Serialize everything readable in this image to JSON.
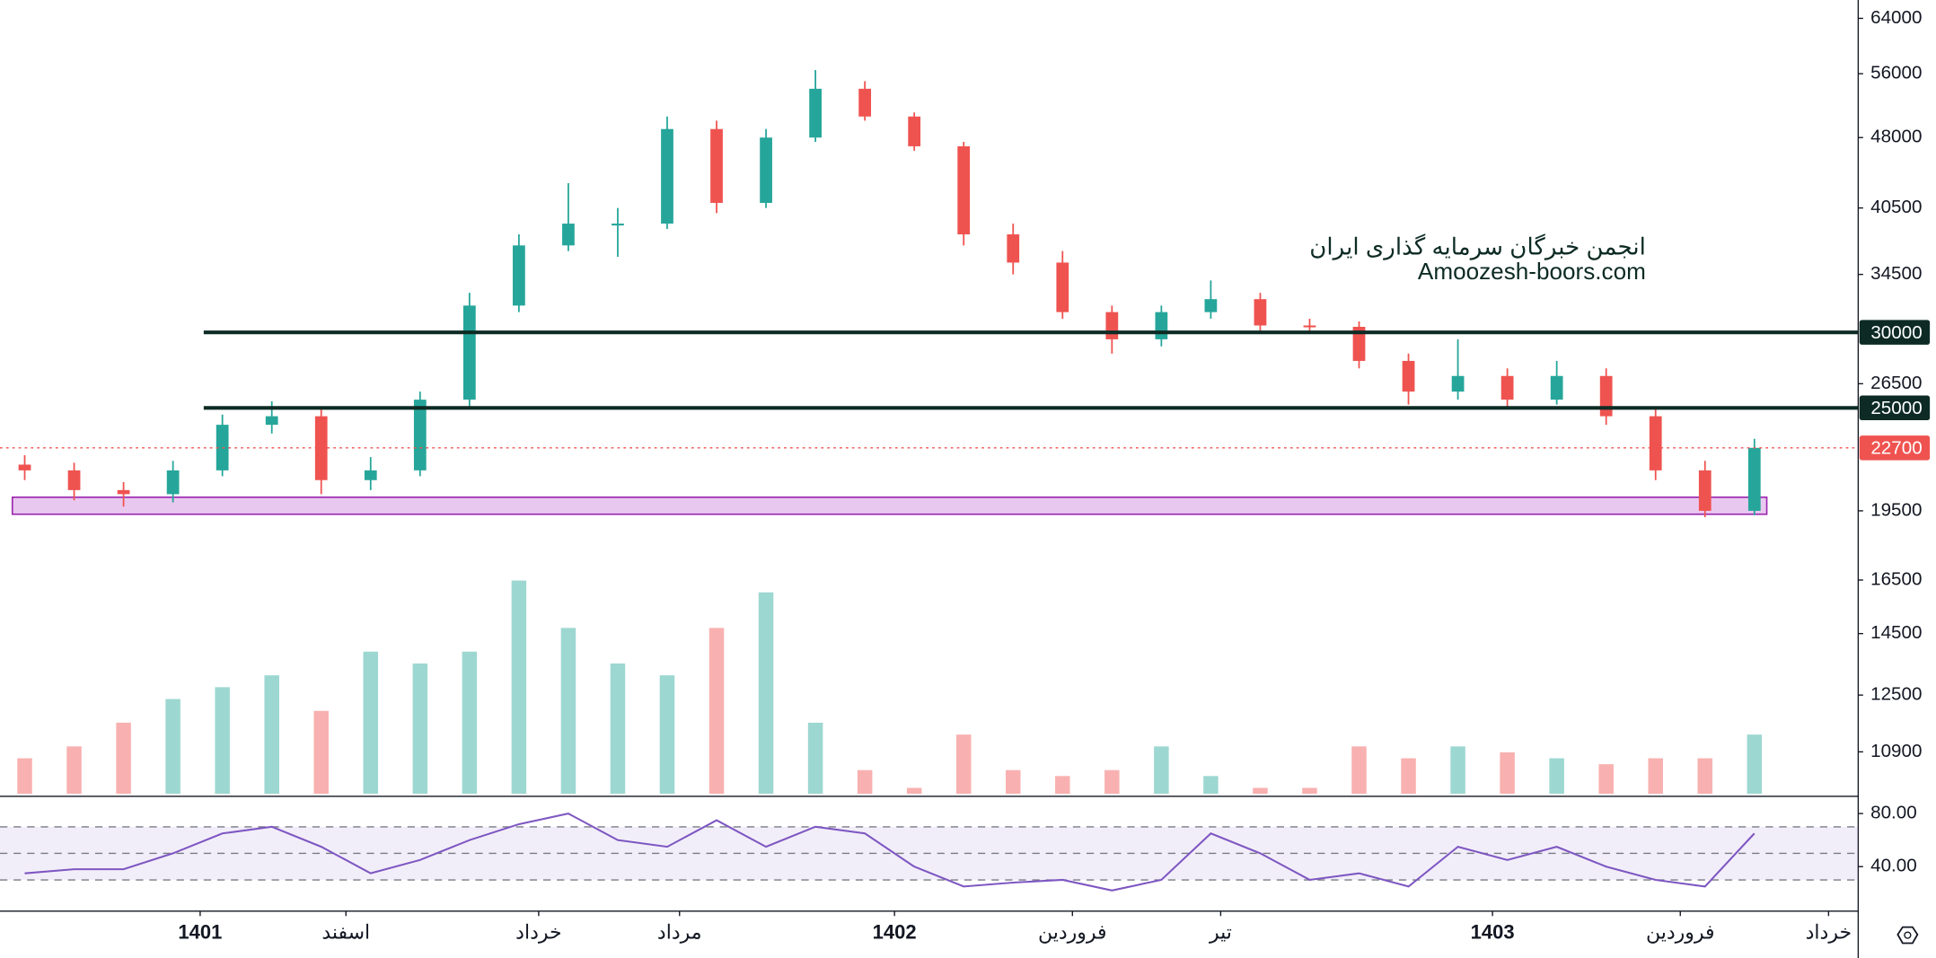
{
  "watermark": {
    "line1": "انجمن خبرگان سرمایه گذاری ایران",
    "line2": "Amoozesh-boors.com"
  },
  "chart_data": [
    {
      "type": "candlestick",
      "log_scale": true,
      "open": [
        21800,
        21500,
        20500,
        20300,
        21500,
        24000,
        24500,
        21000,
        21500,
        25500,
        32000,
        37000,
        39000,
        39000,
        49000,
        41000,
        48000,
        54000,
        50500,
        47000,
        38000,
        35500,
        31500,
        29500,
        31500,
        32500,
        30500,
        30400,
        28000,
        26000,
        27000,
        25500,
        27000,
        24500,
        21500,
        19500
      ],
      "high": [
        22300,
        21900,
        20900,
        22000,
        24600,
        25400,
        25000,
        22200,
        26000,
        33000,
        38000,
        43000,
        40500,
        50500,
        50000,
        49000,
        56500,
        55000,
        51000,
        47500,
        39000,
        36500,
        32000,
        32000,
        34000,
        33000,
        31000,
        30800,
        28500,
        29500,
        27500,
        28000,
        27500,
        25000,
        22000,
        23200
      ],
      "low": [
        21000,
        20000,
        19700,
        19900,
        21200,
        23500,
        20300,
        20500,
        21200,
        25000,
        31500,
        36500,
        36000,
        38500,
        40000,
        40500,
        47500,
        50000,
        46500,
        37000,
        34500,
        31000,
        28500,
        29000,
        31000,
        30000,
        30000,
        27500,
        25200,
        25500,
        25000,
        25200,
        24000,
        21000,
        19200,
        19300
      ],
      "close": [
        21500,
        20500,
        20300,
        21500,
        24000,
        24500,
        21000,
        21500,
        25500,
        32000,
        37000,
        39000,
        39000,
        49000,
        41000,
        48000,
        54000,
        50500,
        47000,
        38000,
        35500,
        31500,
        29500,
        31500,
        32500,
        30500,
        30400,
        28000,
        26000,
        27000,
        25500,
        27000,
        24500,
        21500,
        19500,
        22700
      ],
      "volume": [
        30,
        40,
        60,
        80,
        90,
        100,
        70,
        120,
        110,
        120,
        180,
        140,
        110,
        100,
        140,
        170,
        60,
        20,
        5,
        50,
        20,
        15,
        20,
        40,
        15,
        5,
        5,
        40,
        30,
        40,
        35,
        30,
        25,
        30,
        30,
        50
      ],
      "volume_lim": [
        0,
        670
      ],
      "up_color": "#26a69a",
      "down_color": "#ef5350",
      "ylim": [
        9850,
        66900
      ],
      "yticks": [
        64000,
        56000,
        48000,
        40500,
        34500,
        26500,
        19500,
        16500,
        14500,
        12500,
        10900
      ],
      "xlim": [
        -0.5,
        37.1
      ],
      "xticks": [
        {
          "value": 3.55,
          "label": "1401"
        },
        {
          "value": 6.5,
          "label": "اسفند"
        },
        {
          "value": 10.4,
          "label": "خرداد"
        },
        {
          "value": 13.25,
          "label": "مرداد"
        },
        {
          "value": 17.6,
          "label": "1402"
        },
        {
          "value": 21.2,
          "label": "فروردین"
        },
        {
          "value": 24.2,
          "label": "تیر"
        },
        {
          "value": 29.7,
          "label": "1403"
        },
        {
          "value": 33.5,
          "label": "فروردین"
        },
        {
          "value": 36.5,
          "label": "خرداد"
        }
      ],
      "hlines": [
        {
          "value": 30000,
          "color": "#0d2b24",
          "style": "solid"
        },
        {
          "value": 25000,
          "color": "#0d2b24",
          "style": "solid"
        },
        {
          "value": 22700,
          "color": "#ef5350",
          "style": "dotted"
        }
      ],
      "zone": {
        "low": 19340,
        "high": 20150,
        "start": 0,
        "end": 35,
        "color": "#e9c8f0",
        "border": "#9c27b0"
      }
    },
    {
      "type": "line",
      "color": "#7e57c2",
      "values": [
        35,
        38,
        38,
        50,
        65,
        70,
        55,
        35,
        45,
        60,
        72,
        80,
        60,
        55,
        75,
        55,
        70,
        65,
        40,
        25,
        28,
        30,
        22,
        30,
        65,
        50,
        30,
        35,
        25,
        55,
        45,
        55,
        40,
        30,
        25,
        65
      ],
      "ylim": [
        6.5,
        93
      ],
      "yticks": [
        {
          "value": 80,
          "label": "80.00"
        },
        {
          "value": 40,
          "label": "40.00"
        }
      ],
      "band": [
        30,
        70
      ],
      "guides": [
        70,
        50,
        30
      ]
    }
  ]
}
